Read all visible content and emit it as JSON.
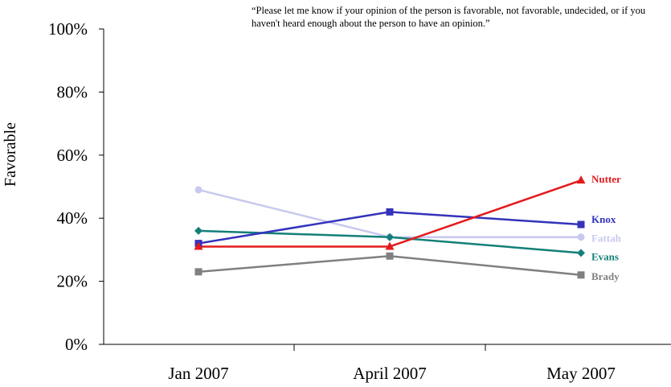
{
  "chart_data": {
    "type": "line",
    "note": "“Please let me know if your opinion of the person is favorable, not favorable, undecided, or if you haven't heard enough about the person to have an opinion.”",
    "ylabel": "Favorable",
    "xlabel": "",
    "categories": [
      "Jan 2007",
      "April 2007",
      "May 2007"
    ],
    "ylim": [
      0,
      100
    ],
    "yticks": [
      "0%",
      "20%",
      "40%",
      "60%",
      "80%",
      "100%"
    ],
    "ytick_values": [
      0,
      20,
      40,
      60,
      80,
      100
    ],
    "grid": false,
    "series": [
      {
        "name": "Nutter",
        "color": "#e31a1c",
        "marker": "triangle",
        "values": [
          31,
          31,
          52
        ]
      },
      {
        "name": "Knox",
        "color": "#3333bb",
        "marker": "square",
        "values": [
          32,
          42,
          38
        ]
      },
      {
        "name": "Fattah",
        "color": "#c8c8f0",
        "marker": "circle",
        "values": [
          49,
          34,
          34
        ]
      },
      {
        "name": "Evans",
        "color": "#138078",
        "marker": "diamond",
        "values": [
          36,
          34,
          29
        ]
      },
      {
        "name": "Brady",
        "color": "#808080",
        "marker": "square",
        "values": [
          23,
          28,
          22
        ]
      }
    ]
  }
}
